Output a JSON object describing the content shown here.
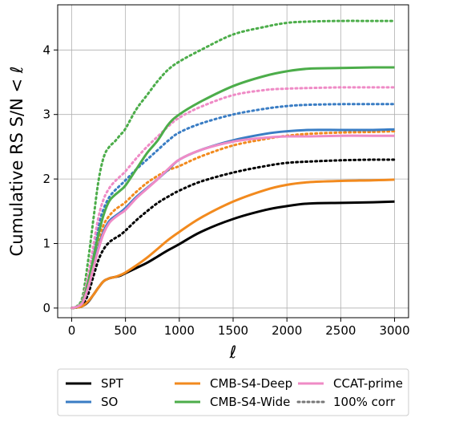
{
  "chart_data": {
    "type": "line",
    "xlabel": "ℓ",
    "ylabel": "Cumulative RS S/N  < ℓ",
    "xlim": [
      -130,
      3130
    ],
    "ylim": [
      -0.15,
      4.7
    ],
    "xticks": [
      0,
      500,
      1000,
      1500,
      2000,
      2500,
      3000
    ],
    "yticks": [
      0,
      1,
      2,
      3,
      4
    ],
    "grid": true,
    "legend_position": "bottom, below plot",
    "legend_columns": 3,
    "legend": [
      {
        "label": "SPT",
        "color": "#000000",
        "dash": "solid"
      },
      {
        "label": "SO",
        "color": "#3a7dc4",
        "dash": "solid"
      },
      {
        "label": "CMB-S4-Deep",
        "color": "#f28a1e",
        "dash": "solid"
      },
      {
        "label": "CMB-S4-Wide",
        "color": "#4cad4a",
        "dash": "solid"
      },
      {
        "label": "CCAT-prime",
        "color": "#ef8bc6",
        "dash": "solid"
      },
      {
        "label": "100% corr",
        "color": "#777777",
        "dash": "dotted"
      }
    ],
    "x": [
      0,
      50,
      100,
      150,
      200,
      250,
      300,
      350,
      400,
      450,
      500,
      600,
      700,
      800,
      900,
      1000,
      1200,
      1500,
      1800,
      2000,
      2200,
      2500,
      2800,
      3000
    ],
    "series": [
      {
        "name": "SPT",
        "color": "#000000",
        "dash": "solid",
        "values": [
          0,
          0.01,
          0.03,
          0.09,
          0.2,
          0.32,
          0.42,
          0.46,
          0.48,
          0.5,
          0.54,
          0.62,
          0.7,
          0.8,
          0.9,
          0.99,
          1.18,
          1.38,
          1.52,
          1.58,
          1.62,
          1.63,
          1.64,
          1.65
        ]
      },
      {
        "name": "SO",
        "color": "#3a7dc4",
        "dash": "solid",
        "values": [
          0,
          0.02,
          0.08,
          0.3,
          0.62,
          0.95,
          1.2,
          1.35,
          1.42,
          1.48,
          1.55,
          1.72,
          1.86,
          2.0,
          2.15,
          2.3,
          2.45,
          2.6,
          2.7,
          2.74,
          2.76,
          2.76,
          2.76,
          2.77
        ]
      },
      {
        "name": "CMB-S4-Deep",
        "color": "#f28a1e",
        "dash": "solid",
        "values": [
          0,
          0.01,
          0.03,
          0.1,
          0.2,
          0.32,
          0.42,
          0.46,
          0.48,
          0.51,
          0.55,
          0.66,
          0.78,
          0.92,
          1.06,
          1.18,
          1.4,
          1.65,
          1.83,
          1.91,
          1.95,
          1.97,
          1.98,
          1.99
        ]
      },
      {
        "name": "CMB-S4-Wide",
        "color": "#4cad4a",
        "dash": "solid",
        "values": [
          0,
          0.02,
          0.1,
          0.38,
          0.75,
          1.15,
          1.46,
          1.66,
          1.75,
          1.82,
          1.9,
          2.15,
          2.4,
          2.6,
          2.85,
          3.0,
          3.2,
          3.44,
          3.6,
          3.67,
          3.71,
          3.72,
          3.73,
          3.73
        ]
      },
      {
        "name": "CCAT-prime",
        "color": "#ef8bc6",
        "dash": "solid",
        "values": [
          0,
          0.02,
          0.08,
          0.3,
          0.6,
          0.92,
          1.17,
          1.32,
          1.4,
          1.46,
          1.52,
          1.7,
          1.85,
          2.0,
          2.16,
          2.3,
          2.45,
          2.58,
          2.64,
          2.66,
          2.66,
          2.67,
          2.67,
          2.67
        ]
      }
    ],
    "corr_series": [
      {
        "name": "SPT",
        "color": "#000000",
        "dash": "dotted",
        "values": [
          0,
          0.01,
          0.05,
          0.2,
          0.48,
          0.75,
          0.92,
          1.02,
          1.08,
          1.13,
          1.2,
          1.36,
          1.5,
          1.63,
          1.73,
          1.82,
          1.96,
          2.1,
          2.2,
          2.25,
          2.27,
          2.29,
          2.3,
          2.3
        ]
      },
      {
        "name": "SO",
        "color": "#3a7dc4",
        "dash": "dotted",
        "values": [
          0,
          0.02,
          0.1,
          0.42,
          0.85,
          1.28,
          1.55,
          1.72,
          1.82,
          1.9,
          1.98,
          2.15,
          2.3,
          2.45,
          2.6,
          2.72,
          2.86,
          3.0,
          3.09,
          3.13,
          3.15,
          3.16,
          3.16,
          3.16
        ]
      },
      {
        "name": "CMB-S4-Deep",
        "color": "#f28a1e",
        "dash": "dotted",
        "values": [
          0,
          0.02,
          0.08,
          0.33,
          0.7,
          1.05,
          1.3,
          1.43,
          1.52,
          1.58,
          1.64,
          1.8,
          1.94,
          2.05,
          2.14,
          2.2,
          2.35,
          2.52,
          2.62,
          2.67,
          2.7,
          2.72,
          2.73,
          2.74
        ]
      },
      {
        "name": "CMB-S4-Wide",
        "color": "#4cad4a",
        "dash": "dotted",
        "values": [
          0,
          0.03,
          0.17,
          0.7,
          1.35,
          1.98,
          2.35,
          2.5,
          2.58,
          2.68,
          2.78,
          3.08,
          3.3,
          3.52,
          3.7,
          3.82,
          4.0,
          4.24,
          4.36,
          4.42,
          4.44,
          4.45,
          4.45,
          4.45
        ]
      },
      {
        "name": "CCAT-prime",
        "color": "#ef8bc6",
        "dash": "dotted",
        "values": [
          0,
          0.02,
          0.12,
          0.48,
          0.95,
          1.42,
          1.7,
          1.86,
          1.96,
          2.04,
          2.12,
          2.32,
          2.5,
          2.66,
          2.82,
          2.95,
          3.12,
          3.3,
          3.38,
          3.4,
          3.41,
          3.42,
          3.42,
          3.42
        ]
      }
    ]
  }
}
